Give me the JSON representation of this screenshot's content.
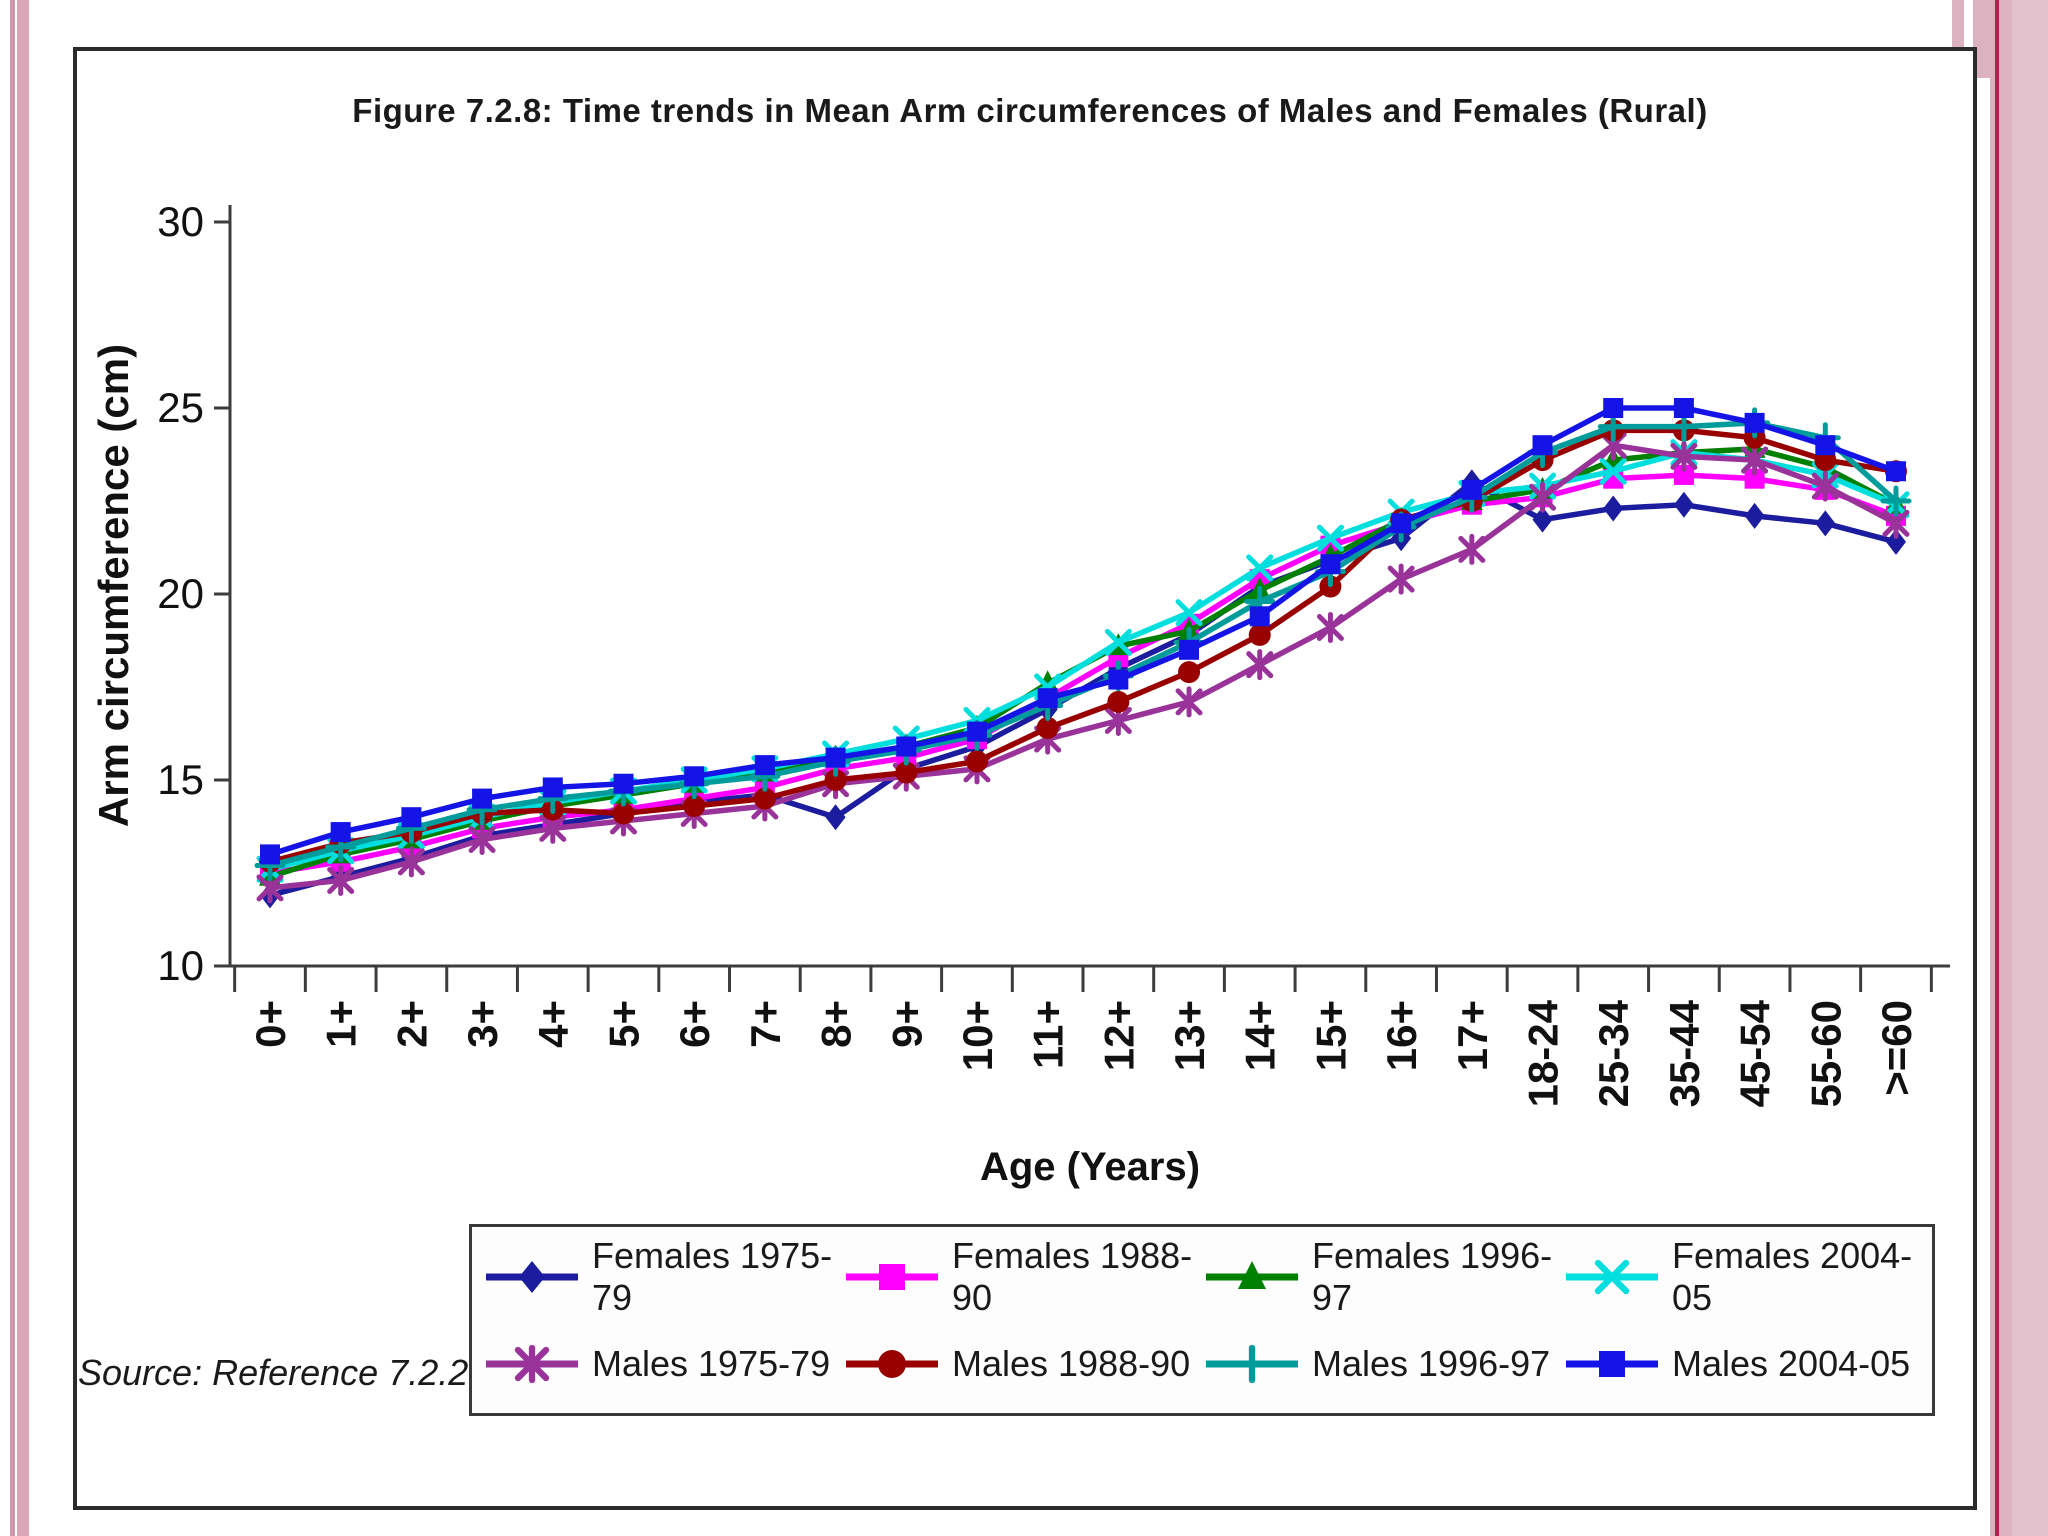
{
  "page": {
    "source": "Source: Reference 7.2.2"
  },
  "chart_data": {
    "type": "line",
    "title": "Figure 7.2.8: Time trends in Mean Arm circumferences of Males and Females (Rural)",
    "xlabel": "Age (Years)",
    "ylabel": "Arm circumference (cm)",
    "ylim": [
      10,
      30
    ],
    "yticks": [
      10,
      15,
      20,
      25,
      30
    ],
    "grid": "off",
    "legend_position": "bottom",
    "categories": [
      "0+",
      "1+",
      "2+",
      "3+",
      "4+",
      "5+",
      "6+",
      "7+",
      "8+",
      "9+",
      "10+",
      "11+",
      "12+",
      "13+",
      "14+",
      "15+",
      "16+",
      "17+",
      "18-24",
      "25-34",
      "35-44",
      "45-54",
      "55-60",
      ">=60"
    ],
    "series": [
      {
        "name": "Females 1975-79",
        "color": "#1c1c9e",
        "marker": "diamond",
        "values": [
          11.9,
          12.4,
          12.9,
          13.5,
          13.8,
          14.1,
          14.4,
          14.6,
          14.0,
          15.3,
          15.9,
          16.9,
          18.0,
          18.9,
          20.2,
          20.9,
          21.5,
          23.0,
          22.0,
          22.3,
          22.4,
          22.1,
          21.9,
          21.4
        ]
      },
      {
        "name": "Females 1988-90",
        "color": "#ff00ff",
        "marker": "square",
        "values": [
          12.5,
          12.8,
          13.2,
          13.7,
          14.0,
          14.2,
          14.5,
          14.8,
          15.3,
          15.6,
          16.1,
          17.2,
          18.3,
          19.2,
          20.4,
          21.3,
          21.9,
          22.4,
          22.6,
          23.1,
          23.2,
          23.1,
          22.8,
          22.1
        ]
      },
      {
        "name": "Females 1996-97",
        "color": "#008000",
        "marker": "triangle",
        "values": [
          12.4,
          13.0,
          13.4,
          13.9,
          14.3,
          14.6,
          14.9,
          15.2,
          15.6,
          15.9,
          16.4,
          17.6,
          18.6,
          19.0,
          20.1,
          21.0,
          22.0,
          22.5,
          22.8,
          23.6,
          23.8,
          23.9,
          23.4,
          22.4
        ]
      },
      {
        "name": "Females 2004-05",
        "color": "#00dede",
        "marker": "x",
        "values": [
          12.6,
          13.1,
          13.5,
          14.0,
          14.4,
          14.7,
          15.0,
          15.3,
          15.7,
          16.1,
          16.6,
          17.5,
          18.7,
          19.5,
          20.7,
          21.5,
          22.2,
          22.7,
          22.9,
          23.3,
          23.8,
          23.6,
          23.2,
          22.4
        ]
      },
      {
        "name": "Males 1975-79",
        "color": "#993399",
        "marker": "asterisk",
        "values": [
          12.1,
          12.3,
          12.8,
          13.4,
          13.7,
          13.9,
          14.1,
          14.3,
          14.9,
          15.1,
          15.3,
          16.1,
          16.6,
          17.1,
          18.1,
          19.1,
          20.4,
          21.2,
          22.6,
          24.0,
          23.7,
          23.6,
          22.9,
          21.9
        ]
      },
      {
        "name": "Males 1988-90",
        "color": "#990000",
        "marker": "circle",
        "values": [
          12.8,
          13.3,
          13.6,
          14.1,
          14.2,
          14.1,
          14.3,
          14.5,
          15.0,
          15.2,
          15.5,
          16.4,
          17.1,
          17.9,
          18.9,
          20.2,
          22.0,
          22.5,
          23.6,
          24.4,
          24.4,
          24.2,
          23.6,
          23.3
        ]
      },
      {
        "name": "Males 1996-97",
        "color": "#009c9c",
        "marker": "plus",
        "values": [
          12.7,
          13.2,
          13.7,
          14.2,
          14.5,
          14.7,
          14.9,
          15.1,
          15.5,
          15.8,
          16.2,
          17.0,
          17.8,
          18.7,
          19.8,
          20.6,
          21.8,
          22.6,
          23.8,
          24.5,
          24.5,
          24.6,
          24.2,
          22.5
        ]
      },
      {
        "name": "Males 2004-05",
        "color": "#1414e6",
        "marker": "square",
        "values": [
          13.0,
          13.6,
          14.0,
          14.5,
          14.8,
          14.9,
          15.1,
          15.4,
          15.6,
          15.9,
          16.3,
          17.2,
          17.7,
          18.5,
          19.4,
          20.8,
          21.9,
          22.8,
          24.0,
          25.0,
          25.0,
          24.6,
          24.0,
          23.3
        ]
      }
    ]
  },
  "decor": {
    "pink_stripe": "#dba6b8",
    "pink_band": "#dcb2c1",
    "crimson_line": "#a8284e",
    "frame_border": "#2b2b2b"
  }
}
